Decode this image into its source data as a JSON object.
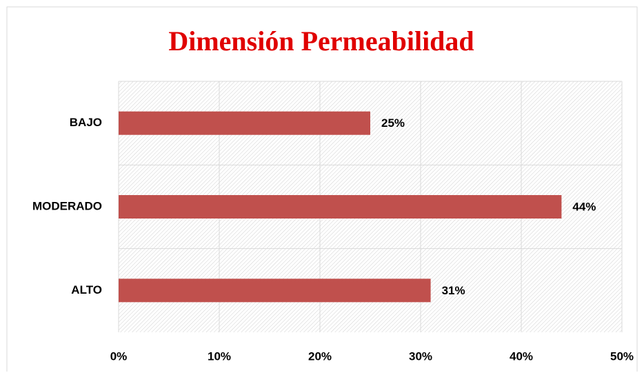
{
  "chart_data": {
    "type": "bar",
    "orientation": "horizontal",
    "title": "Dimensión Permeabilidad",
    "categories": [
      "BAJO",
      "MODERADO",
      "ALTO"
    ],
    "values": [
      25,
      44,
      31
    ],
    "value_labels": [
      "25%",
      "44%",
      "31%"
    ],
    "color": "#c0504d",
    "xlim": [
      0,
      50
    ],
    "xticks": [
      {
        "value": 0,
        "label": "0%"
      },
      {
        "value": 10,
        "label": "10%"
      },
      {
        "value": 20,
        "label": "20%"
      },
      {
        "value": 30,
        "label": "30%"
      },
      {
        "value": 40,
        "label": "40%"
      },
      {
        "value": 50,
        "label": "50%"
      }
    ],
    "grid": true
  }
}
